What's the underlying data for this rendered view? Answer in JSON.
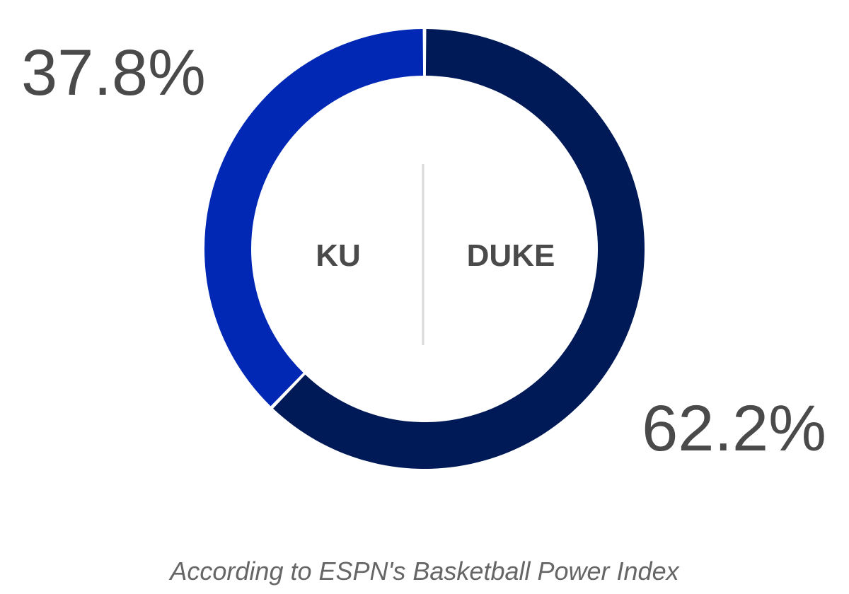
{
  "chart_data": {
    "type": "pie",
    "donut": true,
    "slices": [
      {
        "team": "KU",
        "value": 37.8,
        "label": "37.8%",
        "color": "#0028b4"
      },
      {
        "team": "DUKE",
        "value": 62.2,
        "label": "62.2%",
        "color": "#001a57"
      }
    ],
    "caption": "According to ESPN's Basketball Power Index",
    "divider_color": "#d9d9d9"
  }
}
